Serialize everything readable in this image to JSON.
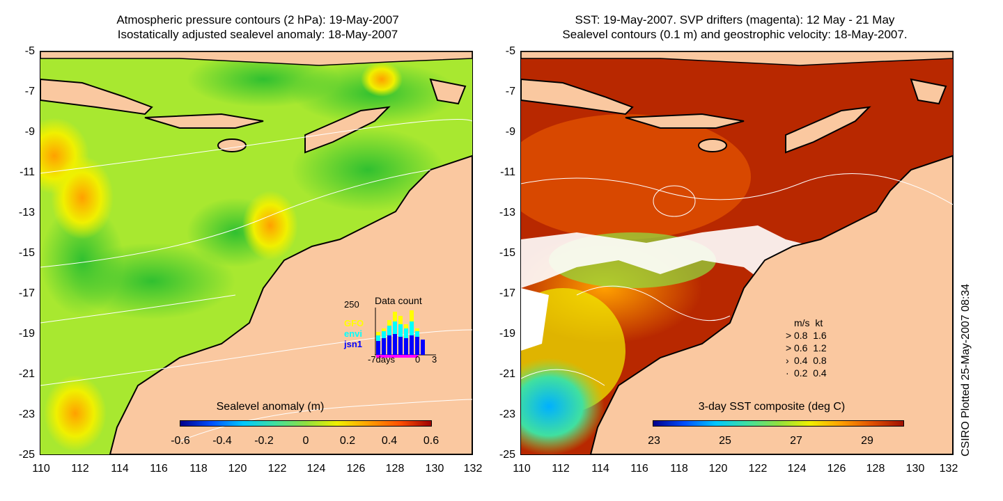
{
  "left_panel": {
    "title_line1": "Atmospheric pressure contours (2 hPa): 19-May-2007",
    "title_line2": "Isostatically adjusted sealevel anomaly: 18-May-2007",
    "colorbar": {
      "label": "Sealevel anomaly (m)",
      "ticks": [
        "-0.6",
        "-0.4",
        "-0.2",
        "0",
        "0.2",
        "0.4",
        "0.6"
      ]
    },
    "inset": {
      "title": "Data count",
      "ymax_label": "250",
      "series": [
        {
          "name": "GFO",
          "color": "#ffff00"
        },
        {
          "name": "envi",
          "color": "#00ffff"
        },
        {
          "name": "jsn1",
          "color": "#0000ff"
        }
      ],
      "x_left": "-7days",
      "x_mid": "0",
      "x_right": "3"
    }
  },
  "right_panel": {
    "title_line1": "SST: 19-May-2007. SVP drifters (magenta): 12 May - 21 May",
    "title_line2": "Sealevel contours (0.1 m) and geostrophic velocity: 18-May-2007.",
    "colorbar": {
      "label": "3-day SST composite (deg C)",
      "ticks": [
        "23",
        "25",
        "27",
        "29"
      ]
    },
    "velocity_legend": {
      "header_ms": "m/s",
      "header_kt": "kt",
      "rows": [
        {
          "ms": "0.8",
          "kt": "1.6"
        },
        {
          "ms": "0.6",
          "kt": "1.2"
        },
        {
          "ms": "0.4",
          "kt": "0.8"
        },
        {
          "ms": "0.2",
          "kt": "0.4"
        }
      ]
    }
  },
  "axes": {
    "lat_ticks": [
      "-5",
      "-7",
      "-9",
      "-11",
      "-13",
      "-15",
      "-17",
      "-19",
      "-21",
      "-23",
      "-25"
    ],
    "lon_ticks": [
      "110",
      "112",
      "114",
      "116",
      "118",
      "120",
      "122",
      "124",
      "126",
      "128",
      "130",
      "132"
    ]
  },
  "credit": "CSIRO Plotted 25-May-2007 08:34",
  "colors": {
    "land": "#fac8a0",
    "ssh_scale": [
      "#00008c",
      "#0050ff",
      "#00c8ff",
      "#40e0a0",
      "#90e040",
      "#f0f000",
      "#ffa000",
      "#ff5000",
      "#a00000"
    ],
    "sst_scale": [
      "#00008c",
      "#0050ff",
      "#00c8ff",
      "#40e0a0",
      "#90e040",
      "#f0f000",
      "#ffa000",
      "#e05000",
      "#a01000"
    ]
  }
}
